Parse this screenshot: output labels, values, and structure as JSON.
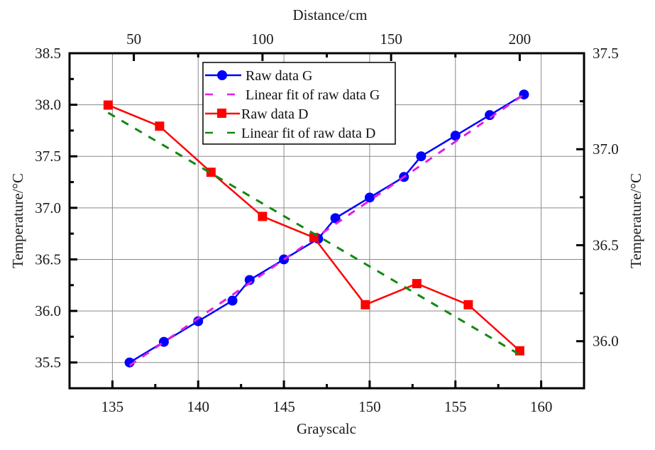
{
  "chart_data": {
    "type": "line",
    "axes": {
      "bottom": {
        "label": "Grayscalc",
        "range": [
          132.5,
          162.5
        ],
        "ticks": [
          135,
          140,
          145,
          150,
          155,
          160
        ],
        "tick_labels": [
          "135",
          "140",
          "145",
          "150",
          "155",
          "160"
        ],
        "minor_step": 2.5
      },
      "top": {
        "label": "Distance/cm",
        "range": [
          25,
          225
        ],
        "ticks": [
          50,
          100,
          150,
          200
        ],
        "tick_labels": [
          "50",
          "100",
          "150",
          "200"
        ],
        "minor_step": 25
      },
      "left": {
        "label": "Temperature/°C",
        "range": [
          35.25,
          38.5
        ],
        "ticks": [
          35.5,
          36.0,
          36.5,
          37.0,
          37.5,
          38.0,
          38.5
        ],
        "tick_labels": [
          "35.5",
          "36.0",
          "36.5",
          "37.0",
          "37.5",
          "38.0",
          "38.5"
        ],
        "minor_step": 0.25
      },
      "right": {
        "label": "Temperature/°C",
        "range": [
          35.755,
          37.5
        ],
        "ticks": [
          36.0,
          36.5,
          37.0,
          37.5
        ],
        "tick_labels": [
          "36.0",
          "36.5",
          "37.0",
          "37.5"
        ],
        "minor_step": 0.25
      }
    },
    "grid": true,
    "legend_position": "top-center",
    "series": [
      {
        "name": "Raw data G",
        "label": "Raw data G",
        "x_axis": "bottom",
        "y_axis": "left",
        "color": "#0000ff",
        "marker": "circle",
        "line": "solid",
        "x": [
          136,
          138,
          140,
          142,
          143,
          145,
          147,
          148,
          150,
          152,
          153,
          155,
          157,
          159
        ],
        "y": [
          35.5,
          35.7,
          35.9,
          36.1,
          36.3,
          36.5,
          36.7,
          36.9,
          37.1,
          37.3,
          37.5,
          37.7,
          37.9,
          38.1
        ]
      },
      {
        "name": "Linear fit of raw data G",
        "label": "Linear fit of raw data G",
        "x_axis": "bottom",
        "y_axis": "left",
        "color": "#e020e0",
        "marker": "none",
        "line": "dashed",
        "x": [
          136,
          159
        ],
        "y": [
          35.47,
          38.1
        ]
      },
      {
        "name": "Raw data D",
        "label": "Raw data D",
        "x_axis": "top",
        "y_axis": "right",
        "color": "#ff0000",
        "marker": "square",
        "line": "solid",
        "x": [
          40,
          60,
          80,
          100,
          120,
          140,
          160,
          180,
          200
        ],
        "y": [
          37.23,
          37.12,
          36.88,
          36.65,
          36.54,
          36.19,
          36.3,
          36.19,
          35.95
        ]
      },
      {
        "name": "Linear fit of raw data D",
        "label": "Linear fit of raw data D",
        "x_axis": "top",
        "y_axis": "right",
        "color": "#118811",
        "marker": "none",
        "line": "dashed",
        "x": [
          40,
          200
        ],
        "y": [
          37.19,
          35.93
        ]
      }
    ]
  }
}
